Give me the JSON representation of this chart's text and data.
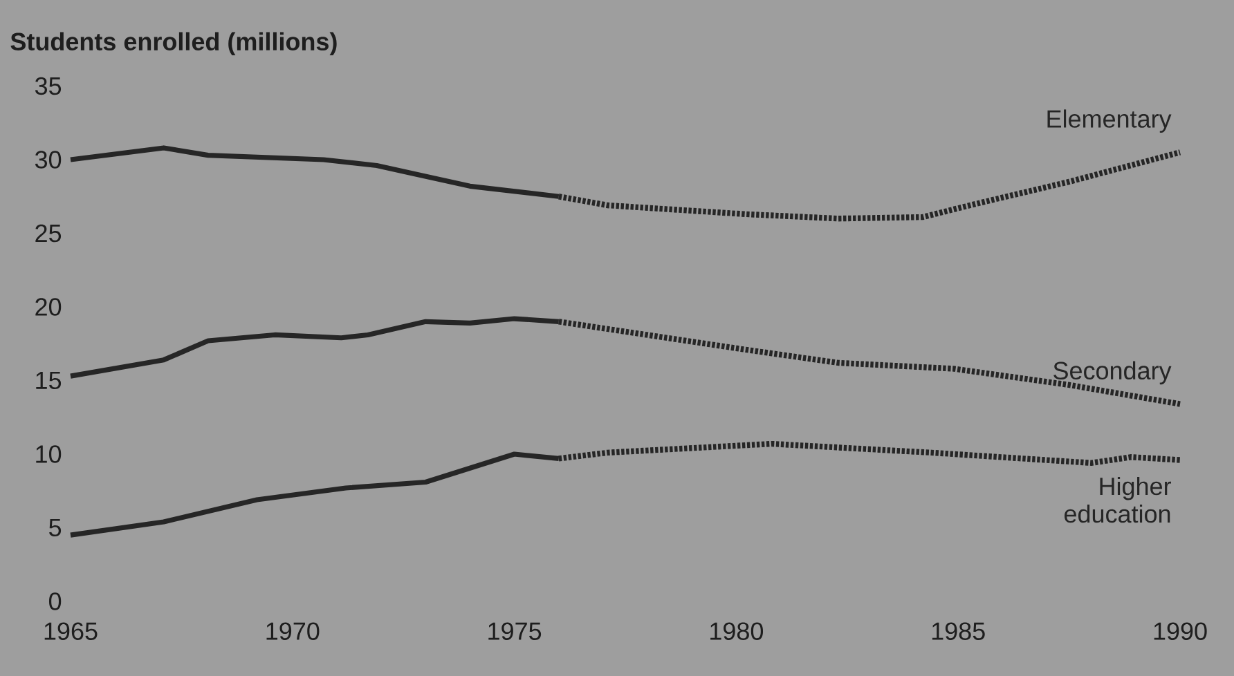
{
  "chart_data": {
    "type": "line",
    "ylabel": "Students enrolled (millions)",
    "xlim": [
      1965,
      1990
    ],
    "ylim": [
      0,
      35
    ],
    "xticks": [
      1965,
      1970,
      1975,
      1980,
      1985,
      1990
    ],
    "yticks": [
      0,
      5,
      10,
      15,
      20,
      25,
      30,
      35
    ],
    "series": [
      {
        "color": "#262626",
        "line_style": "solid",
        "x": [
          1965,
          1967.1,
          1968.1,
          1970.7,
          1971.9,
          1974,
          1976
        ],
        "values": [
          30.0,
          30.8,
          30.3,
          30.0,
          29.6,
          28.2,
          27.5
        ]
      },
      {
        "name": "Elementary",
        "color": "#262626",
        "line_style": "dotted",
        "x": [
          1976,
          1977.1,
          1980.2,
          1982.3,
          1984.2,
          1985.4,
          1987.5,
          1990
        ],
        "values": [
          27.5,
          26.9,
          26.3,
          26.0,
          26.1,
          27.0,
          28.5,
          30.5
        ]
      },
      {
        "color": "#262626",
        "line_style": "solid",
        "x": [
          1965,
          1967.1,
          1968.1,
          1969.6,
          1971.1,
          1971.7,
          1973,
          1974,
          1975,
          1976
        ],
        "values": [
          15.3,
          16.4,
          17.7,
          18.1,
          17.9,
          18.1,
          19.0,
          18.9,
          19.2,
          19.0
        ]
      },
      {
        "name": "Secondary",
        "color": "#262626",
        "line_style": "dotted",
        "x": [
          1976,
          1977.1,
          1980.2,
          1982.3,
          1984.9,
          1987.5,
          1990
        ],
        "values": [
          19.0,
          18.5,
          17.1,
          16.2,
          15.8,
          14.7,
          13.4
        ]
      },
      {
        "color": "#262626",
        "line_style": "solid",
        "x": [
          1965,
          1967.1,
          1969.2,
          1971.2,
          1973,
          1975,
          1976
        ],
        "values": [
          4.5,
          5.4,
          6.9,
          7.7,
          8.1,
          10.0,
          9.7
        ]
      },
      {
        "name": "Higher education",
        "color": "#262626",
        "line_style": "dotted",
        "x": [
          1976,
          1977.1,
          1980.8,
          1984.4,
          1988,
          1988.9,
          1990
        ],
        "values": [
          9.7,
          10.1,
          10.7,
          10.1,
          9.4,
          9.8,
          9.6
        ]
      }
    ]
  }
}
